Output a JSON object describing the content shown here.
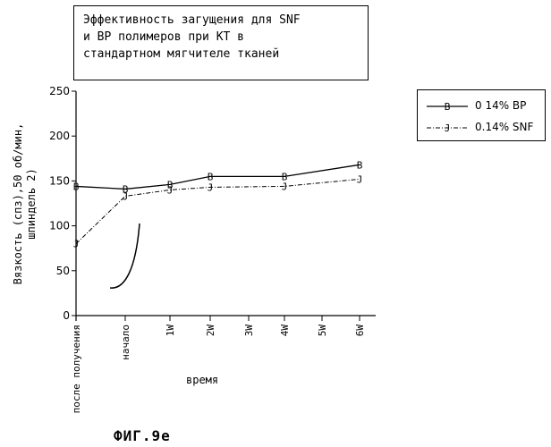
{
  "chart_data": {
    "type": "line",
    "title": "Эффективность загущения для SNF\nи BP полимеров при КТ в\nстандартном мягчителе тканей",
    "xlabel": "время",
    "ylabel": "Вязкость (спз),50 об/мин,\nшпиндель 2)",
    "categories": [
      "после получения",
      "начало",
      "1W",
      "2W",
      "3W",
      "4W",
      "5W",
      "6W"
    ],
    "ylim": [
      0,
      250
    ],
    "yticks": [
      0,
      50,
      100,
      150,
      200,
      250
    ],
    "legend_position": "right",
    "series": [
      {
        "name": "0 14% BP",
        "marker": "B",
        "dash": "solid",
        "points": [
          {
            "x": "после получения",
            "y": 144
          },
          {
            "x": "начало",
            "y": 141
          },
          {
            "x": "1W",
            "y": 146
          },
          {
            "x": "2W",
            "y": 155
          },
          {
            "x": "4W",
            "y": 155
          },
          {
            "x": "6W",
            "y": 168
          }
        ]
      },
      {
        "name": "0.14% SNF",
        "marker": "J",
        "dash": "dashdot",
        "points": [
          {
            "x": "после получения",
            "y": 80
          },
          {
            "x": "начало",
            "y": 133
          },
          {
            "x": "1W",
            "y": 140
          },
          {
            "x": "2W",
            "y": 143
          },
          {
            "x": "4W",
            "y": 144
          },
          {
            "x": "6W",
            "y": 152
          }
        ]
      }
    ]
  },
  "figure": {
    "label": "ФИГ.9e"
  }
}
